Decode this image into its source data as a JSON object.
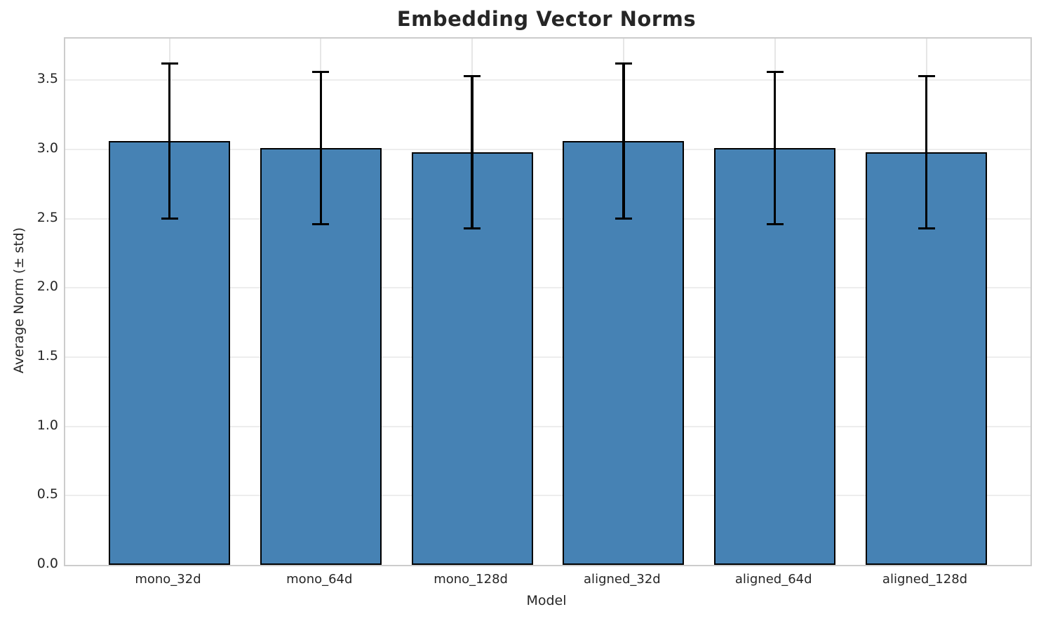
{
  "chart_data": {
    "type": "bar",
    "title": "Embedding Vector Norms",
    "xlabel": "Model",
    "ylabel": "Average Norm (± std)",
    "categories": [
      "mono_32d",
      "mono_64d",
      "mono_128d",
      "aligned_32d",
      "aligned_64d",
      "aligned_128d"
    ],
    "values": [
      3.06,
      3.01,
      2.98,
      3.06,
      3.01,
      2.98
    ],
    "errors": [
      0.56,
      0.55,
      0.55,
      0.56,
      0.55,
      0.55
    ],
    "error_type": "± std",
    "yticks": [
      0.0,
      0.5,
      1.0,
      1.5,
      2.0,
      2.5,
      3.0,
      3.5
    ],
    "ylim": [
      0,
      3.8
    ],
    "grid": true,
    "legend": false,
    "colors": {
      "bar_fill": "#4682B4",
      "bar_edge": "#000000",
      "error_bar": "#000000",
      "grid_line": "#ededed",
      "spine": "#cccccc",
      "text": "#262626"
    }
  }
}
